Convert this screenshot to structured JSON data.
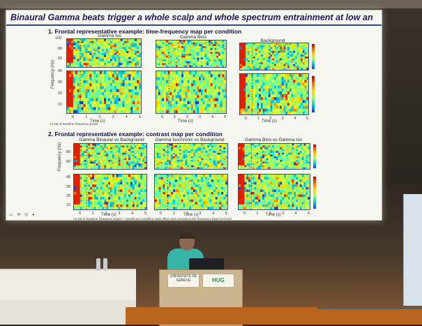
{
  "slide": {
    "title": "Binaural Gamma beats trigger a whole scalp and whole spectrum entrainment at low and high frequencies",
    "section1_title": "1. Frontal representative example: time-frequency map per condition",
    "section2_title": "2. Frontal representative example: contrast map per condition",
    "top_panels": [
      "Gamma Iso",
      "Gamma Bino",
      "Background"
    ],
    "bottom_panels": [
      "Gamma Binaural vs Background",
      "Gamma Isochronic vs Background",
      "Gamma Bino vs Gamma Iso"
    ],
    "x_axis_label": "Time (s)",
    "y_axis_label": "Frequency (Hz)",
    "x_ticks": [
      "0",
      "1",
      "2",
      "3",
      "4",
      "5"
    ],
    "y_ticks_high": [
      "100",
      "80",
      "60"
    ],
    "y_ticks_low": [
      "40",
      "30",
      "20",
      "10"
    ],
    "note1": ">3 std of baseline frequency power",
    "note2": ">3 std of baseline frequency power + Significant condition main effect and contrast in the frequency band (p<0.01)"
  },
  "lectern": {
    "logo_left": "UNIVERSITÉ DE GENÈVE",
    "logo_right": "HUG"
  },
  "colors": {
    "heatmap_low": "#1e3cd0",
    "heatmap_mid": "#9cff5c",
    "heatmap_high": "#c00000",
    "shirt": "#36b4a8"
  }
}
